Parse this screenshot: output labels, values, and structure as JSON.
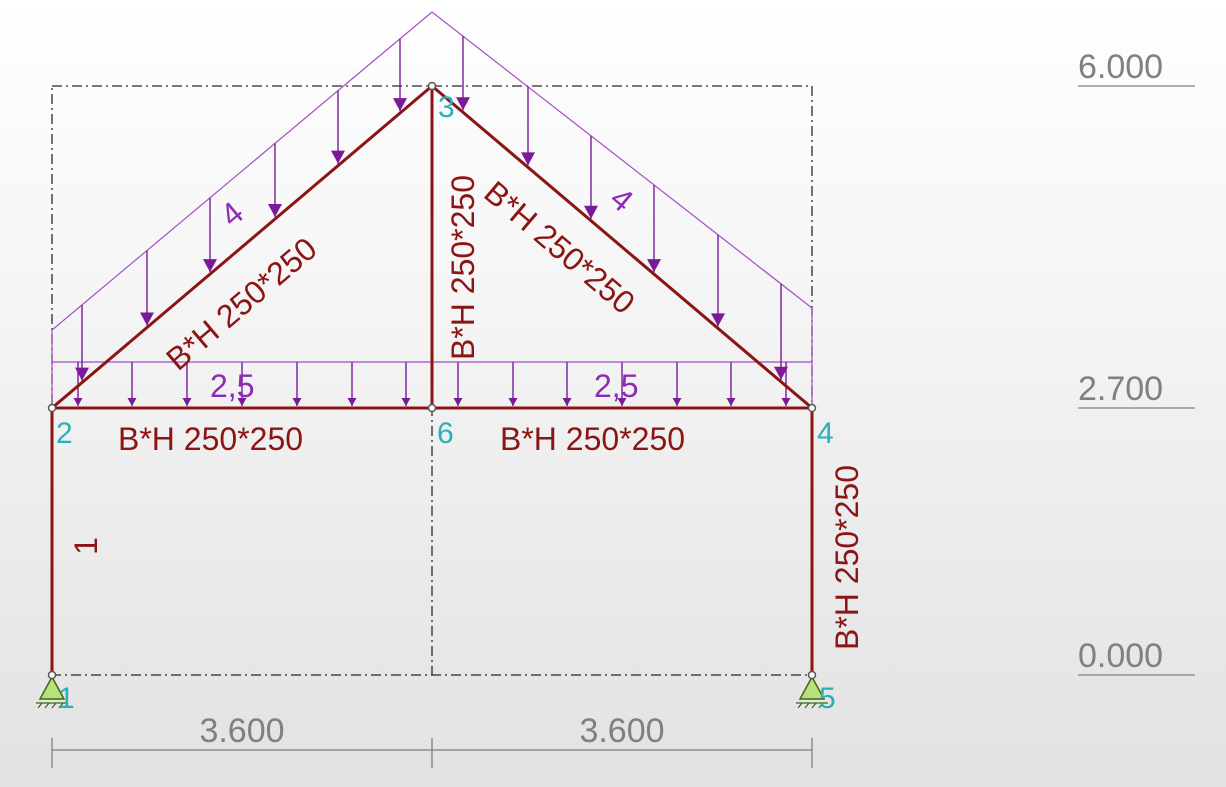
{
  "levels": [
    "6.000",
    "2.700",
    "0.000"
  ],
  "dimensions": [
    "3.600",
    "3.600"
  ],
  "nodes": [
    "1",
    "2",
    "3",
    "4",
    "5",
    "6"
  ],
  "member_labels": {
    "left_rafter": "B*H 250*250",
    "right_rafter": "B*H 250*250",
    "king_post": "B*H 250*250",
    "left_tie": "B*H 250*250",
    "right_tie": "B*H 250*250",
    "left_column": "1",
    "right_column": "B*H 250*250"
  },
  "loads": {
    "left_rafter": "4",
    "right_rafter": "4",
    "left_tie": "2,5",
    "right_tie": "2,5"
  },
  "colors": {
    "member": "#8b1414",
    "load": "#7a1a9a",
    "node_label": "#27b1b8",
    "dimension": "#808080",
    "support": "#b9e07a"
  }
}
